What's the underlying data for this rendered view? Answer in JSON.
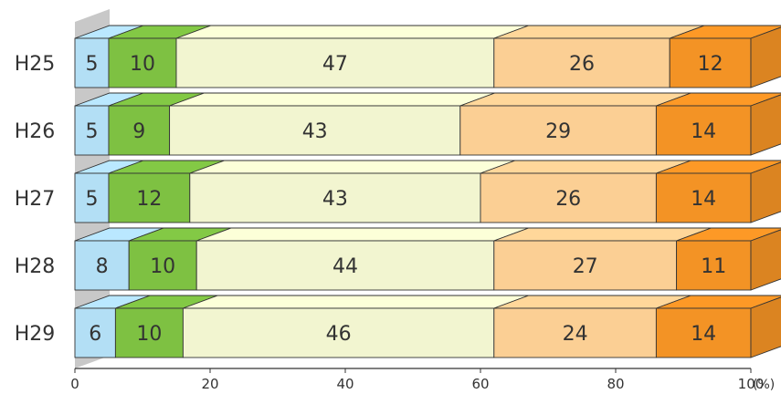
{
  "chart_data": {
    "type": "bar",
    "orientation": "horizontal",
    "stacked": true,
    "percent": true,
    "categories": [
      "H25",
      "H26",
      "H27",
      "H28",
      "H29"
    ],
    "series": [
      {
        "values": [
          5,
          5,
          5,
          8,
          6
        ],
        "color": "#b3dff5"
      },
      {
        "values": [
          10,
          9,
          12,
          10,
          10
        ],
        "color": "#7ec142"
      },
      {
        "values": [
          47,
          43,
          43,
          44,
          46
        ],
        "color": "#f2f5d0"
      },
      {
        "values": [
          26,
          29,
          26,
          27,
          24
        ],
        "color": "#fbcf94"
      },
      {
        "values": [
          12,
          14,
          14,
          11,
          14
        ],
        "color": "#f39325"
      }
    ],
    "x_ticks": [
      "0",
      "20",
      "40",
      "60",
      "80",
      "100"
    ],
    "x_unit": "(%)",
    "xlim": [
      0,
      100
    ],
    "title": "",
    "xlabel": "",
    "ylabel": "",
    "grid": false,
    "legend": "none"
  }
}
